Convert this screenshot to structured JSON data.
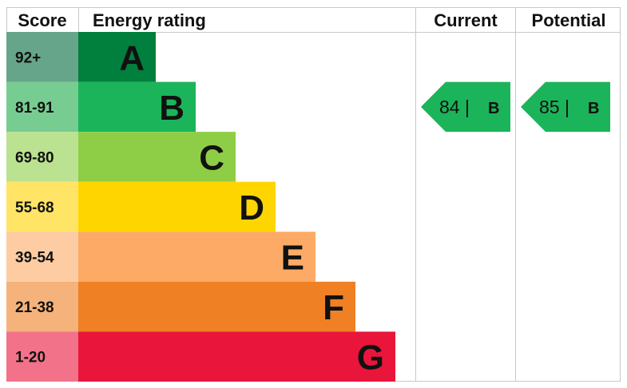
{
  "headers": {
    "score": "Score",
    "rating": "Energy rating",
    "current": "Current",
    "potential": "Potential"
  },
  "chart_data": {
    "type": "bar",
    "bands": [
      {
        "letter": "A",
        "range": "92+",
        "color": "#007f3d",
        "score_color": "#66a58a"
      },
      {
        "letter": "B",
        "range": "81-91",
        "color": "#1cb45a",
        "score_color": "#77cc92"
      },
      {
        "letter": "C",
        "range": "69-80",
        "color": "#8dce46",
        "score_color": "#bbe290"
      },
      {
        "letter": "D",
        "range": "55-68",
        "color": "#ffd500",
        "score_color": "#ffe466"
      },
      {
        "letter": "E",
        "range": "39-54",
        "color": "#fcaa65",
        "score_color": "#fdcca3"
      },
      {
        "letter": "F",
        "range": "21-38",
        "color": "#ef8023",
        "score_color": "#f5b27b"
      },
      {
        "letter": "G",
        "range": "1-20",
        "color": "#e9153b",
        "score_color": "#f27389"
      }
    ],
    "current": {
      "value": 84,
      "label": "84 |",
      "band": "B"
    },
    "potential": {
      "value": 85,
      "label": "85 |",
      "band": "B"
    }
  }
}
